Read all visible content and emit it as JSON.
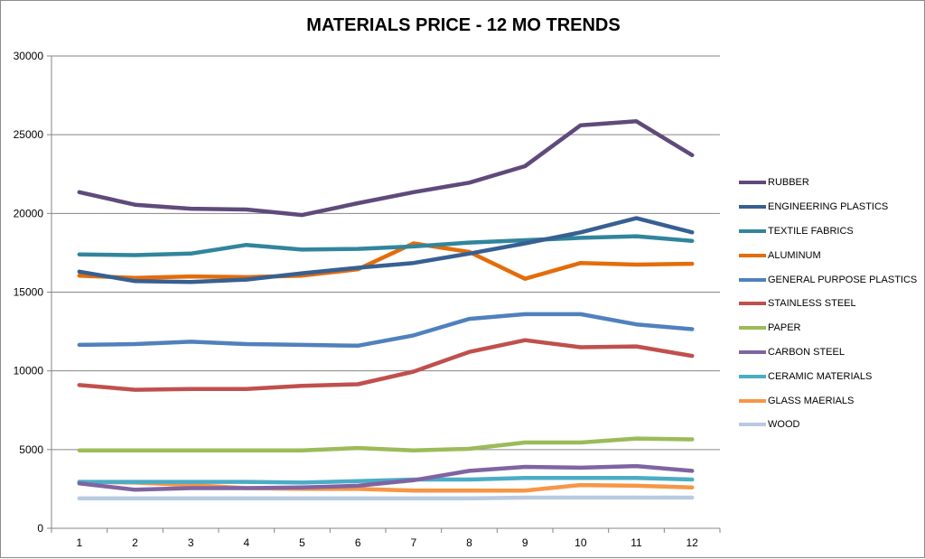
{
  "chart_data": {
    "type": "line",
    "title": "MATERIALS PRICE - 12 MO TRENDS",
    "xlabel": "",
    "ylabel": "",
    "categories": [
      "1",
      "2",
      "3",
      "4",
      "5",
      "6",
      "7",
      "8",
      "9",
      "10",
      "11",
      "12"
    ],
    "yticks": [
      "0",
      "5000",
      "10000",
      "15000",
      "20000",
      "25000",
      "30000"
    ],
    "ylim": [
      0,
      30000
    ],
    "grid": true,
    "legend_position": "right",
    "series": [
      {
        "name": "RUBBER",
        "color": "#604a7b",
        "values": [
          21350,
          20550,
          20300,
          20250,
          19900,
          20650,
          21350,
          21950,
          23000,
          25600,
          25850,
          23700
        ]
      },
      {
        "name": "ENGINEERING PLASTICS",
        "color": "#376092",
        "values": [
          16300,
          15700,
          15650,
          15800,
          16200,
          16550,
          16850,
          17450,
          18100,
          18800,
          19700,
          18800
        ]
      },
      {
        "name": "TEXTILE FABRICS",
        "color": "#31859c",
        "values": [
          17400,
          17350,
          17450,
          18000,
          17700,
          17750,
          17900,
          18150,
          18300,
          18450,
          18550,
          18250
        ]
      },
      {
        "name": "ALUMINUM",
        "color": "#e46c0a",
        "values": [
          16050,
          15900,
          16000,
          15950,
          16050,
          16450,
          18100,
          17550,
          15850,
          16850,
          16750,
          16800
        ]
      },
      {
        "name": "GENERAL PURPOSE PLASTICS",
        "color": "#4f81bd",
        "values": [
          11650,
          11700,
          11850,
          11700,
          11650,
          11600,
          12250,
          13300,
          13600,
          13600,
          12950,
          12650
        ]
      },
      {
        "name": "STAINLESS STEEL",
        "color": "#c0504d",
        "values": [
          9100,
          8800,
          8850,
          8850,
          9050,
          9150,
          9950,
          11200,
          11950,
          11500,
          11550,
          10950
        ]
      },
      {
        "name": "PAPER",
        "color": "#9bbb59",
        "values": [
          4950,
          4950,
          4950,
          4950,
          4950,
          5100,
          4950,
          5050,
          5450,
          5450,
          5700,
          5650
        ]
      },
      {
        "name": "CARBON STEEL",
        "color": "#8064a2",
        "values": [
          2850,
          2450,
          2550,
          2550,
          2600,
          2700,
          3050,
          3650,
          3900,
          3850,
          3950,
          3650
        ]
      },
      {
        "name": "CERAMIC MATERIALS",
        "color": "#4bacc6",
        "values": [
          2950,
          2950,
          2950,
          2950,
          2900,
          3000,
          3100,
          3100,
          3200,
          3200,
          3200,
          3100
        ]
      },
      {
        "name": "GLASS MAERIALS",
        "color": "#f79646",
        "values": [
          2950,
          2900,
          2750,
          2550,
          2500,
          2500,
          2400,
          2400,
          2400,
          2750,
          2700,
          2600
        ]
      },
      {
        "name": "WOOD",
        "color": "#b9c9e1",
        "values": [
          1900,
          1900,
          1900,
          1900,
          1900,
          1900,
          1900,
          1900,
          1950,
          1950,
          1950,
          1950
        ]
      }
    ]
  }
}
